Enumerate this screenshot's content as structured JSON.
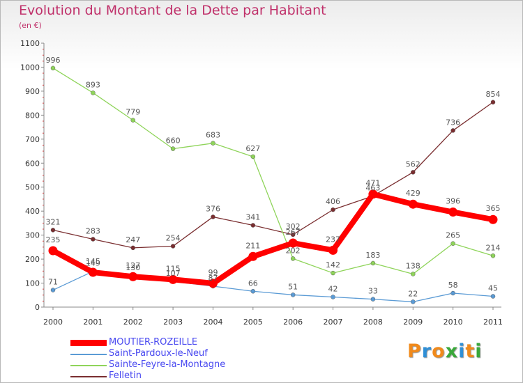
{
  "header": {
    "title": "Evolution du Montant de la Dette par Habitant",
    "subtitle": "(en €)"
  },
  "logo": {
    "text": "Proxiti",
    "colors": [
      "#f08a1c",
      "#2f8fd6",
      "#f08a1c",
      "#39a83a",
      "#2f8fd6",
      "#f08a1c",
      "#39a83a"
    ]
  },
  "chart_data": {
    "type": "line",
    "title": "Evolution du Montant de la Dette par Habitant",
    "subtitle": "(en €)",
    "x": [
      2000,
      2001,
      2002,
      2003,
      2004,
      2005,
      2006,
      2007,
      2008,
      2009,
      2010,
      2011
    ],
    "ylim": [
      0,
      1100
    ],
    "yticks": [
      0,
      100,
      200,
      300,
      400,
      500,
      600,
      700,
      800,
      900,
      1000,
      1100
    ],
    "grid": false,
    "legend_position": "bottom-left",
    "series": [
      {
        "name": "MOUTIER-ROZEILLE",
        "color": "#ff0000",
        "values": [
          235,
          145,
          127,
          115,
          99,
          211,
          267,
          237,
          471,
          429,
          396,
          365
        ],
        "labels": [
          "235",
          "145",
          "127",
          "115",
          "99",
          "211",
          "267",
          "237",
          "471",
          "429",
          "396",
          "365"
        ]
      },
      {
        "name": "Saint-Pardoux-le-Neuf",
        "color": "#5b9bd5",
        "values": [
          71,
          149,
          130,
          107,
          87,
          66,
          51,
          42,
          33,
          22,
          58,
          45
        ],
        "labels": [
          "71",
          "149",
          "130",
          "107",
          "87",
          "66",
          "51",
          "42",
          "33",
          "22",
          "58",
          "45"
        ]
      },
      {
        "name": "Sainte-Feyre-la-Montagne",
        "color": "#8fd45a",
        "values": [
          996,
          893,
          779,
          660,
          683,
          627,
          202,
          142,
          183,
          138,
          265,
          214
        ],
        "labels": [
          "996",
          "893",
          "779",
          "660",
          "683",
          "627",
          "202",
          "142",
          "183",
          "138",
          "265",
          "214"
        ]
      },
      {
        "name": "Felletin",
        "color": "#7a2e30",
        "values": [
          321,
          283,
          247,
          254,
          376,
          341,
          302,
          406,
          463,
          562,
          736,
          854
        ],
        "labels": [
          "321",
          "283",
          "247",
          "254",
          "376",
          "341",
          "302",
          "406",
          "463",
          "562",
          "736",
          "854"
        ]
      }
    ]
  }
}
